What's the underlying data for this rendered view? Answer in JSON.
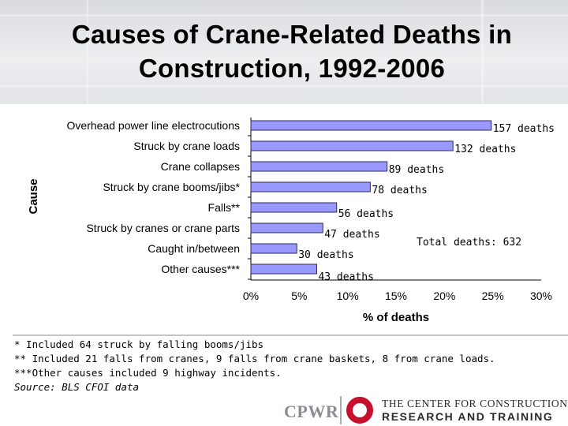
{
  "header": {
    "title_line1": "Causes of Crane-Related Deaths in",
    "title_line2": "Construction, 1992-2006"
  },
  "chart_data": {
    "type": "bar",
    "orientation": "horizontal",
    "title": "Causes of Crane-Related Deaths in Construction, 1992-2006",
    "xlabel": "% of deaths",
    "ylabel": "Cause",
    "xlim": [
      0,
      30
    ],
    "ticks": [
      "0%",
      "5%",
      "10%",
      "15%",
      "20%",
      "25%",
      "30%"
    ],
    "tick_values": [
      0,
      5,
      10,
      15,
      20,
      25,
      30
    ],
    "categories": [
      "Overhead power line electrocutions",
      "Struck by crane loads",
      "Crane collapses",
      "Struck by crane booms/jibs*",
      "Falls**",
      "Struck by cranes or crane parts",
      "Caught in/between",
      "Other causes***"
    ],
    "deaths": [
      157,
      132,
      89,
      78,
      56,
      47,
      30,
      43
    ],
    "data_labels": [
      "157 deaths",
      "132 deaths",
      "89 deaths",
      "78 deaths",
      "56 deaths",
      "47 deaths",
      "30 deaths",
      "43 deaths"
    ],
    "total_deaths": 632,
    "total_label": "Total deaths: 632",
    "bar_color": "#9999ff",
    "bar_border": "#2a2a5a"
  },
  "notes": {
    "note1": "*  Included 64 struck by falling booms/jibs",
    "note2": "** Included 21 falls from cranes, 9 falls from crane baskets, 8 from crane loads.",
    "note3": "***Other causes included 9 highway incidents.",
    "source": "Source:  BLS CFOI data"
  },
  "logo": {
    "short_name": "CPWR",
    "org_line1": "THE CENTER FOR CONSTRUCTION",
    "org_line2": "RESEARCH AND TRAINING",
    "ring_color": "#c8102e"
  }
}
